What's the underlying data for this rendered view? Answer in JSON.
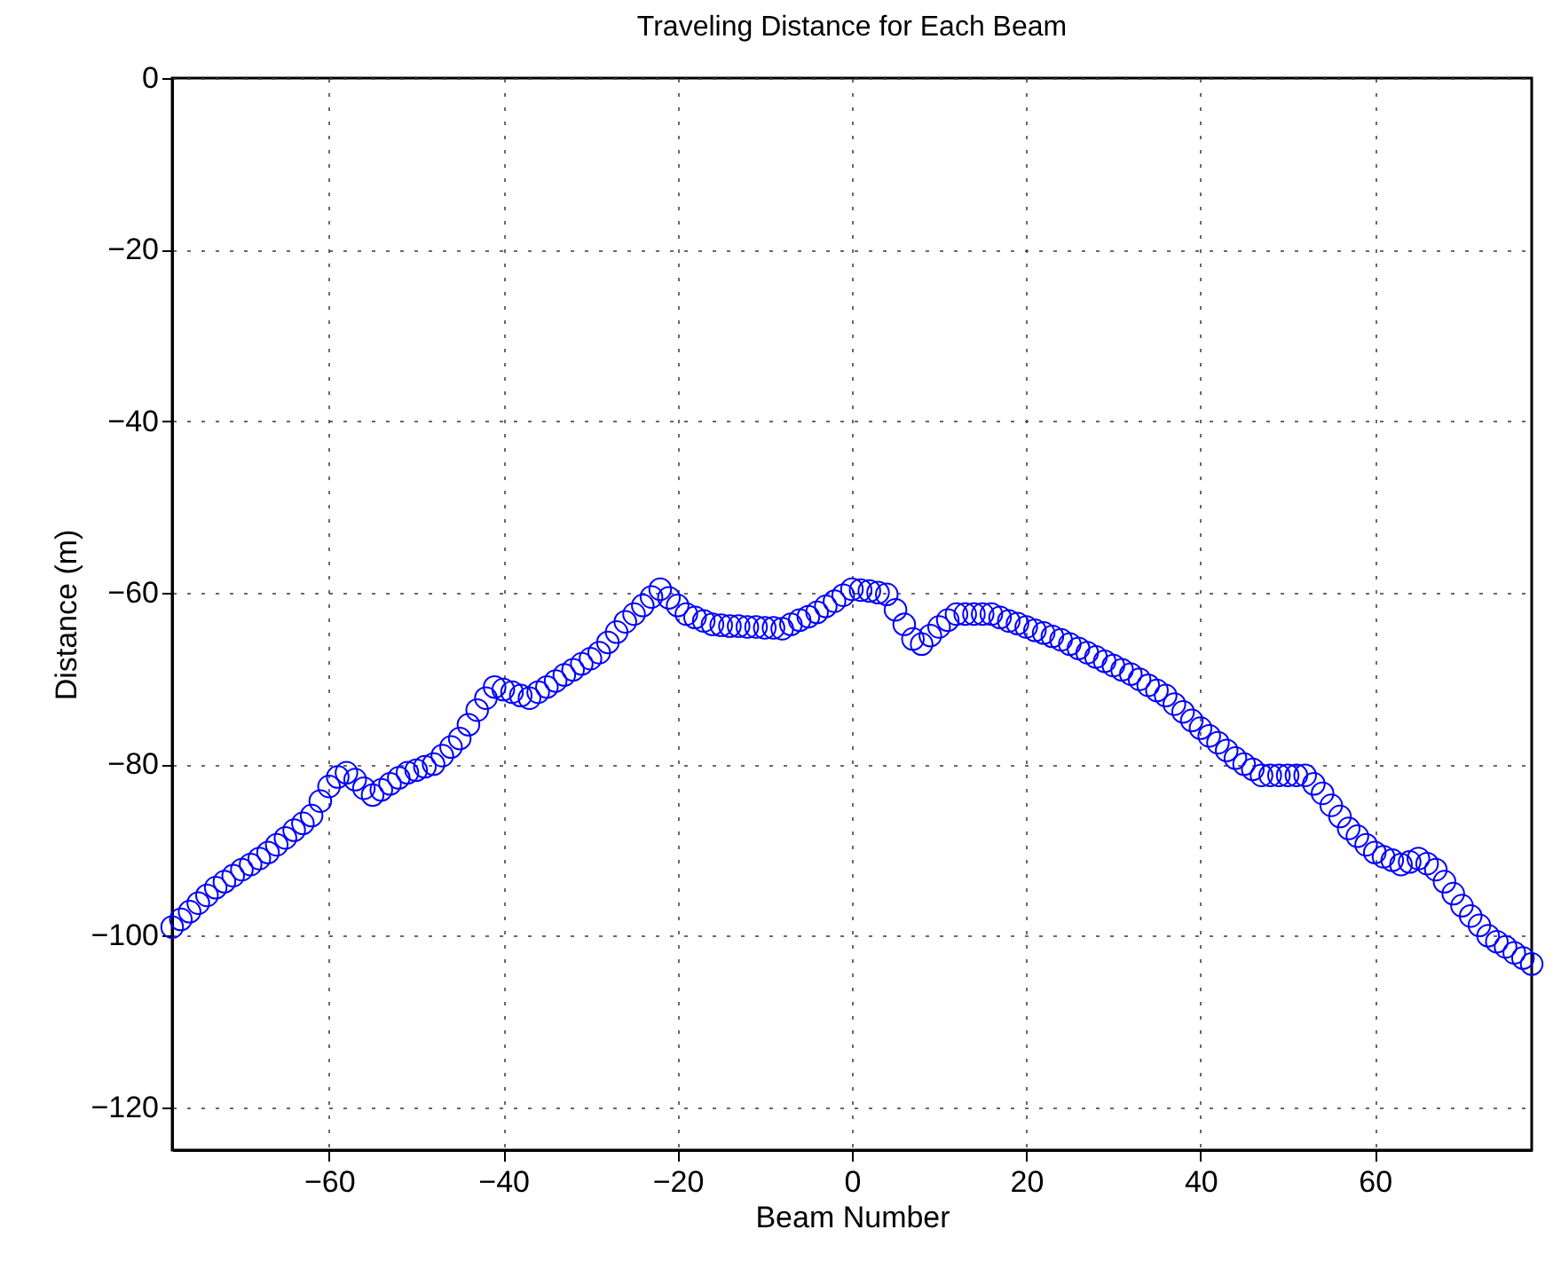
{
  "chart_data": {
    "type": "scatter",
    "title": "Traveling Distance for Each Beam",
    "xlabel": "Beam Number",
    "ylabel": "Distance (m)",
    "x": [
      -78,
      -77,
      -76,
      -75,
      -74,
      -73,
      -72,
      -71,
      -70,
      -69,
      -68,
      -67,
      -66,
      -65,
      -64,
      -63,
      -62,
      -61,
      -60,
      -59,
      -58,
      -57,
      -56,
      -55,
      -54,
      -53,
      -52,
      -51,
      -50,
      -49,
      -48,
      -47,
      -46,
      -45,
      -44,
      -43,
      -42,
      -41,
      -40,
      -39,
      -38,
      -37,
      -36,
      -35,
      -34,
      -33,
      -32,
      -31,
      -30,
      -29,
      -28,
      -27,
      -26,
      -25,
      -24,
      -23,
      -22,
      -21,
      -20,
      -19,
      -18,
      -17,
      -16,
      -15,
      -14,
      -13,
      -12,
      -11,
      -10,
      -9,
      -8,
      -7,
      -6,
      -5,
      -4,
      -3,
      -2,
      -1,
      0,
      1,
      2,
      3,
      4,
      5,
      6,
      7,
      8,
      9,
      10,
      11,
      12,
      13,
      14,
      15,
      16,
      17,
      18,
      19,
      20,
      21,
      22,
      23,
      24,
      25,
      26,
      27,
      28,
      29,
      30,
      31,
      32,
      33,
      34,
      35,
      36,
      37,
      38,
      39,
      40,
      41,
      42,
      43,
      44,
      45,
      46,
      47,
      48,
      49,
      50,
      51,
      52,
      53,
      54,
      55,
      56,
      57,
      58,
      59,
      60,
      61,
      62,
      63,
      64,
      65,
      66,
      67,
      68,
      69,
      70,
      71,
      72,
      73,
      74,
      75,
      76,
      77,
      78
    ],
    "values": [
      -99.0,
      -98.1,
      -97.2,
      -96.2,
      -95.3,
      -94.4,
      -93.7,
      -93.0,
      -92.3,
      -91.7,
      -91.0,
      -90.3,
      -89.4,
      -88.6,
      -87.7,
      -86.9,
      -86.0,
      -84.3,
      -82.6,
      -81.5,
      -81.0,
      -81.8,
      -82.8,
      -83.6,
      -83.0,
      -82.3,
      -81.6,
      -81.0,
      -80.7,
      -80.3,
      -80.0,
      -79.0,
      -78.0,
      -77.0,
      -75.4,
      -73.7,
      -72.3,
      -71.0,
      -71.3,
      -71.6,
      -72.0,
      -72.3,
      -71.6,
      -71.0,
      -70.3,
      -69.6,
      -69.0,
      -68.3,
      -67.7,
      -67.0,
      -65.8,
      -64.6,
      -63.4,
      -62.5,
      -61.5,
      -60.5,
      -59.6,
      -60.6,
      -61.5,
      -62.5,
      -62.9,
      -63.3,
      -63.7,
      -63.8,
      -63.9,
      -63.9,
      -64.0,
      -64.0,
      -64.1,
      -64.1,
      -64.2,
      -63.7,
      -63.2,
      -62.8,
      -62.3,
      -61.6,
      -61.0,
      -60.3,
      -59.6,
      -59.7,
      -59.8,
      -60.0,
      -60.2,
      -62.0,
      -63.7,
      -65.4,
      -66.0,
      -65.0,
      -64.0,
      -63.2,
      -62.5,
      -62.5,
      -62.5,
      -62.5,
      -62.5,
      -62.9,
      -63.3,
      -63.6,
      -64.0,
      -64.4,
      -64.7,
      -65.1,
      -65.5,
      -66.0,
      -66.5,
      -67.0,
      -67.5,
      -68.0,
      -68.5,
      -69.0,
      -69.5,
      -70.1,
      -70.8,
      -71.4,
      -72.0,
      -73.0,
      -73.9,
      -74.9,
      -75.8,
      -76.7,
      -77.5,
      -78.4,
      -79.3,
      -80.0,
      -80.6,
      -81.3,
      -81.3,
      -81.3,
      -81.3,
      -81.3,
      -81.3,
      -82.3,
      -83.4,
      -84.8,
      -86.1,
      -87.5,
      -88.4,
      -89.4,
      -90.3,
      -90.8,
      -91.2,
      -91.7,
      -91.4,
      -91.0,
      -91.6,
      -92.3,
      -93.7,
      -95.1,
      -96.5,
      -97.7,
      -98.8,
      -100.0,
      -100.7,
      -101.3,
      -102.0,
      -102.6,
      -103.3
    ],
    "color": "#0000ff",
    "marker": "circle",
    "xlim": [
      -78,
      78
    ],
    "xticks": [
      -60,
      -40,
      -20,
      0,
      20,
      40,
      60
    ],
    "ylim": [
      -125,
      0
    ],
    "yticks": [
      -120,
      -100,
      -80,
      -60,
      -40,
      -20,
      0
    ],
    "grid": true
  }
}
